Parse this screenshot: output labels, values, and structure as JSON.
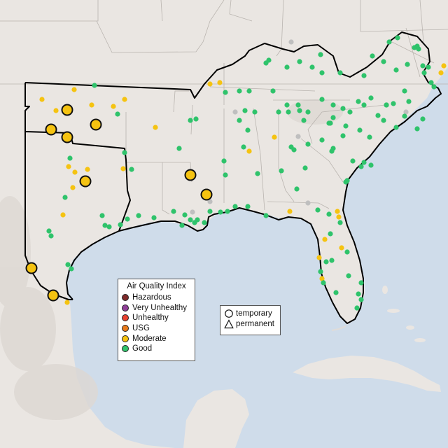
{
  "legend": {
    "title": "Air Quality Index",
    "categories": [
      {
        "label": "Hazardous",
        "color": "#7e2b2b"
      },
      {
        "label": "Very Unhealthy",
        "color": "#8f3f97"
      },
      {
        "label": "Unhealthy",
        "color": "#e8412f"
      },
      {
        "label": "USG",
        "color": "#e87a1c"
      },
      {
        "label": "Moderate",
        "color": "#f5c311"
      },
      {
        "label": "Good",
        "color": "#2fc36b"
      }
    ]
  },
  "shape_legend": {
    "items": [
      {
        "label": "temporary",
        "icon": "circle-icon"
      },
      {
        "label": "permanent",
        "icon": "triangle-icon"
      }
    ]
  },
  "colors": {
    "water": "#cfdcea",
    "land": "#eae6e2",
    "terrain": "#ddd8d3",
    "state_border": "#b9b4af",
    "region_outline": "#000000",
    "no_data": "#bfbfbf"
  }
}
